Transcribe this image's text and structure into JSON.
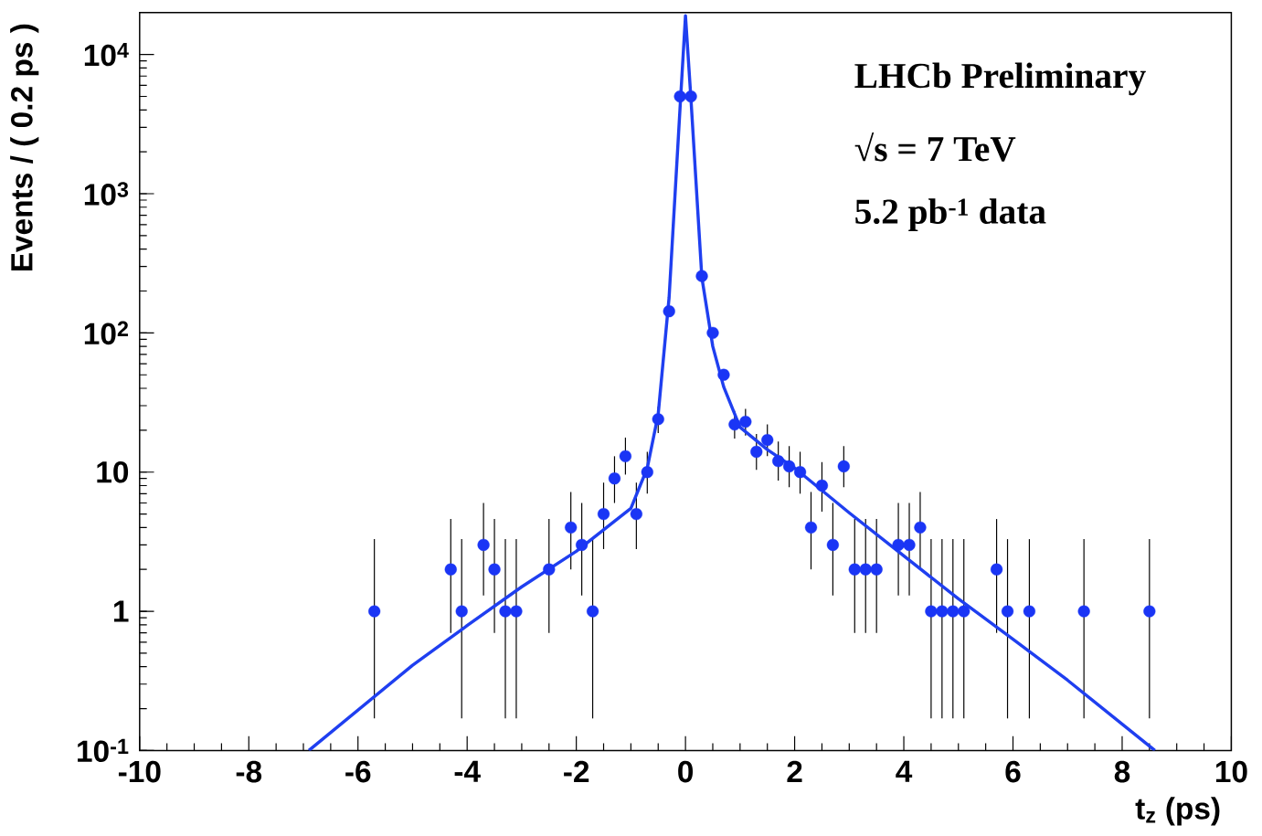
{
  "chart_data": {
    "type": "scatter",
    "xlabel": "t$_{z}$ (ps)",
    "ylabel": "Events / ( 0.2 ps )",
    "log": "y",
    "xlim": [
      -10,
      10
    ],
    "ylim": [
      0.1,
      20000
    ],
    "xticks": [
      -10,
      -8,
      -6,
      -4,
      -2,
      0,
      2,
      4,
      6,
      8,
      10
    ],
    "yticks": [
      {
        "value": 0.1,
        "label": "10$^{-1}$"
      },
      1,
      10,
      {
        "value": 100,
        "label": "10$^{2}$"
      },
      {
        "value": 1000,
        "label": "10$^{3}$"
      },
      {
        "value": 10000,
        "label": "10$^{4}$"
      }
    ],
    "annotations": [
      "**LHCb Preliminary**",
      "**√s = 7 TeV**",
      "**5.2 pb$^{-1}$ data**"
    ],
    "grid": false,
    "series": [
      {
        "color": "#1a35f5",
        "marker": "circle",
        "x": [
          -5.7,
          -4.3,
          -4.1,
          -3.7,
          -3.5,
          -3.3,
          -3.1,
          -2.5,
          -2.1,
          -1.9,
          -1.7,
          -1.5,
          -1.3,
          -1.1,
          -0.9,
          -0.7,
          -0.5,
          -0.3,
          -0.1,
          0.1,
          0.3,
          0.5,
          0.7,
          0.9,
          1.1,
          1.3,
          1.5,
          1.7,
          1.9,
          2.1,
          2.3,
          2.5,
          2.7,
          2.9,
          3.1,
          3.3,
          3.5,
          3.9,
          4.1,
          4.3,
          4.5,
          4.7,
          4.9,
          5.1,
          5.7,
          5.9,
          6.3,
          7.3,
          8.5
        ],
        "values": [
          1,
          2,
          1,
          3,
          2,
          1,
          1,
          2,
          4,
          3,
          1,
          5,
          9,
          13,
          5,
          10,
          24,
          143,
          5000,
          5000,
          256,
          100,
          50,
          22,
          23,
          14,
          17,
          12,
          11,
          10,
          4,
          8,
          3,
          11,
          2,
          2,
          2,
          3,
          3,
          4,
          1,
          1,
          1,
          1,
          2,
          1,
          1,
          1,
          1
        ],
        "errors": [
          [
            0.17,
            3.3
          ],
          [
            0.7,
            4.6
          ],
          [
            0.17,
            3.3
          ],
          [
            1.3,
            6.0
          ],
          [
            0.7,
            4.6
          ],
          [
            0.17,
            3.3
          ],
          [
            0.17,
            3.3
          ],
          [
            0.7,
            4.6
          ],
          [
            2.0,
            7.2
          ],
          [
            1.3,
            6.0
          ],
          [
            0.17,
            3.3
          ],
          [
            2.8,
            8.4
          ],
          [
            6.0,
            13
          ],
          [
            9.6,
            17.7
          ],
          [
            2.8,
            8.4
          ],
          [
            7,
            14
          ],
          [
            19.1,
            29.6
          ],
          null,
          null,
          null,
          null,
          null,
          null,
          [
            17.4,
            27.5
          ],
          [
            18.3,
            28.5
          ],
          [
            10.4,
            18.8
          ],
          [
            13,
            22
          ],
          [
            8.7,
            16.6
          ],
          [
            7.8,
            15.4
          ],
          [
            7,
            14
          ],
          [
            2.0,
            7.2
          ],
          [
            5.2,
            11.8
          ],
          [
            1.3,
            6.0
          ],
          [
            7.8,
            15.4
          ],
          [
            0.7,
            4.6
          ],
          [
            0.7,
            4.6
          ],
          [
            0.7,
            4.6
          ],
          [
            1.3,
            6.0
          ],
          [
            1.3,
            6.0
          ],
          [
            2.0,
            7.2
          ],
          [
            0.17,
            3.3
          ],
          [
            0.17,
            3.3
          ],
          [
            0.17,
            3.3
          ],
          [
            0.17,
            3.3
          ],
          [
            0.7,
            4.6
          ],
          [
            0.17,
            3.3
          ],
          [
            0.17,
            3.3
          ],
          [
            0.17,
            3.3
          ],
          [
            0.17,
            3.3
          ]
        ]
      },
      {
        "type": "line",
        "color": "#1f3ff0",
        "marker": "none",
        "x": [
          -6.9,
          -5,
          -4,
          -3,
          -2,
          -1,
          -0.7,
          -0.5,
          -0.3,
          -0.1,
          0,
          0.1,
          0.3,
          0.5,
          0.7,
          1,
          1.5,
          2,
          3,
          4,
          5,
          6,
          7,
          8.6
        ],
        "values": [
          0.1,
          0.41,
          0.79,
          1.5,
          2.7,
          5.5,
          10.7,
          26,
          180,
          4100,
          19000,
          4800,
          250,
          80,
          41,
          21,
          14.5,
          10.7,
          5.1,
          2.5,
          1.23,
          0.63,
          0.32,
          0.1
        ]
      }
    ]
  }
}
